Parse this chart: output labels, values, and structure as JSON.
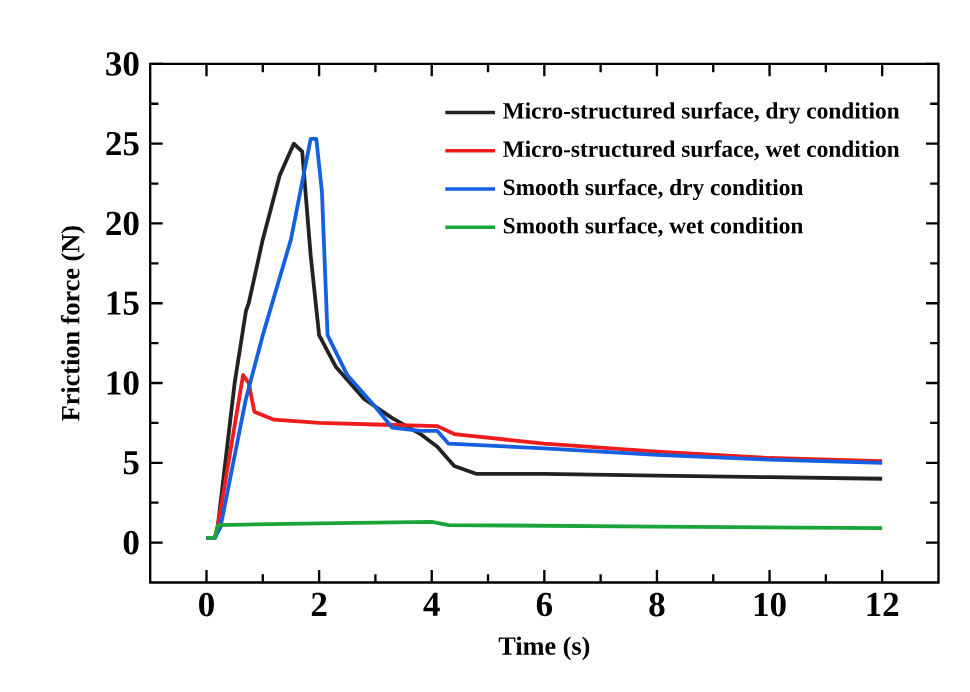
{
  "chart_data": {
    "type": "line",
    "xlabel": "Time (s)",
    "ylabel": "Friction force (N)",
    "xlim": [
      -1,
      13
    ],
    "ylim": [
      -2.5,
      30
    ],
    "xticks": [
      0,
      2,
      4,
      6,
      8,
      10,
      12
    ],
    "yticks": [
      0,
      5,
      10,
      15,
      20,
      25,
      30
    ],
    "grid": false,
    "legend": "top right",
    "marker": "none",
    "line_style": "solid",
    "series": [
      {
        "name": "Micro-structured surface, dry condition",
        "color": "#222222",
        "x": [
          0,
          0.15,
          0.2,
          0.5,
          0.7,
          0.75,
          1.0,
          1.3,
          1.55,
          1.7,
          1.85,
          2.0,
          2.3,
          2.8,
          3.3,
          3.8,
          4.1,
          4.4,
          4.8,
          6,
          8,
          10,
          12
        ],
        "values": [
          0.3,
          0.3,
          1,
          10,
          14.5,
          15,
          19,
          23,
          25,
          24.5,
          18,
          13,
          11,
          9,
          7.8,
          6.8,
          6,
          4.8,
          4.3,
          4.3,
          4.2,
          4.1,
          4.0
        ]
      },
      {
        "name": "Micro-structured surface, wet condition",
        "color": "#ee1c1c",
        "x": [
          0,
          0.15,
          0.2,
          0.65,
          0.75,
          0.85,
          1.2,
          2,
          3,
          4.1,
          4.4,
          6,
          8,
          10,
          12
        ],
        "values": [
          0.3,
          0.3,
          1,
          10.5,
          10,
          8.2,
          7.7,
          7.5,
          7.4,
          7.3,
          6.8,
          6.2,
          5.7,
          5.3,
          5.1
        ]
      },
      {
        "name": "Smooth surface, dry condition",
        "color": "#1560e0",
        "x": [
          0,
          0.15,
          0.25,
          0.7,
          1.0,
          1.5,
          1.85,
          1.95,
          2.05,
          2.15,
          2.5,
          3.0,
          3.3,
          3.8,
          4.1,
          4.3,
          6,
          8,
          10,
          12
        ],
        "values": [
          0.3,
          0.3,
          1,
          9,
          13,
          19,
          25.3,
          25.3,
          22,
          13,
          10.5,
          8.5,
          7.2,
          7.0,
          7.0,
          6.2,
          5.9,
          5.5,
          5.2,
          5.0
        ]
      },
      {
        "name": "Smooth surface, wet condition",
        "color": "#1aa43a",
        "x": [
          0,
          0.15,
          0.2,
          2,
          4,
          4.3,
          8,
          12
        ],
        "values": [
          0.3,
          0.3,
          1.1,
          1.2,
          1.3,
          1.1,
          1.0,
          0.9
        ]
      }
    ]
  }
}
